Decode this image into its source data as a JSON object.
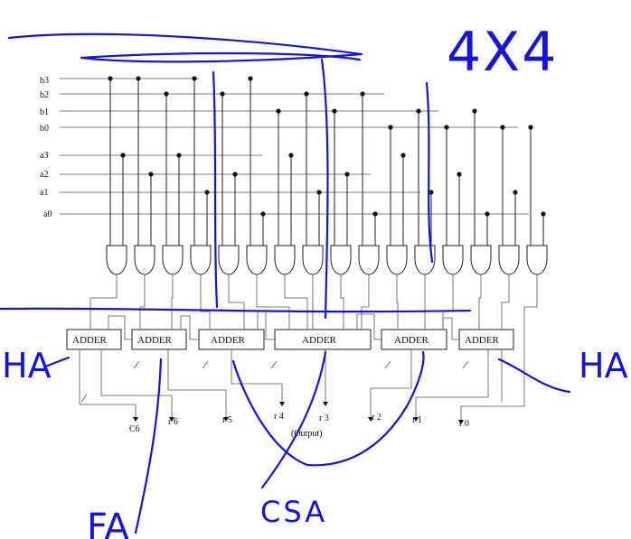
{
  "inputs": {
    "b": [
      "b3",
      "b2",
      "b1",
      "b0"
    ],
    "a": [
      "a3",
      "a2",
      "a1",
      "a0"
    ]
  },
  "adders": [
    "ADDER",
    "ADDER",
    "ADDER",
    "ADDER",
    "ADDER",
    "ADDER"
  ],
  "outputs": [
    "C6",
    "r 6",
    "r 5",
    "r 4",
    "r 3",
    "r 2",
    "r 1",
    "r 0"
  ],
  "output_caption": "(Output)",
  "annotations": {
    "size": "4X4",
    "ha_left": "HA",
    "ha_right": "HA",
    "fa": "FA",
    "csa": "CSA"
  },
  "colors": {
    "ink": "#1515d4",
    "wire": "#222222"
  }
}
